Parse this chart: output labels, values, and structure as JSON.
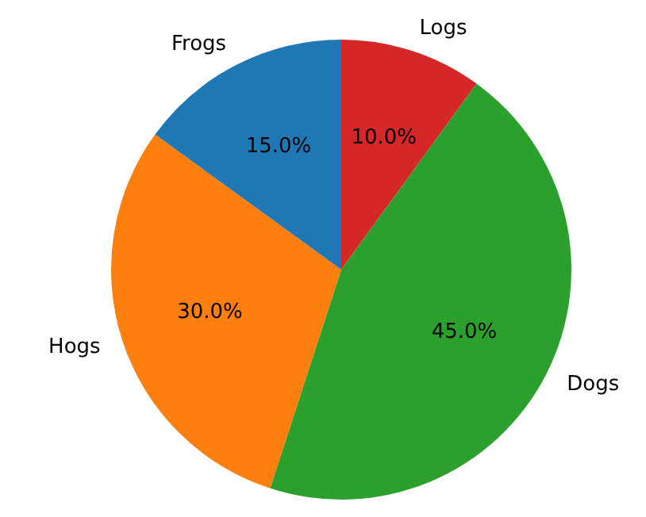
{
  "chart_data": {
    "type": "pie",
    "categories": [
      "Frogs",
      "Hogs",
      "Dogs",
      "Logs"
    ],
    "values": [
      15,
      30,
      45,
      10
    ],
    "value_labels": [
      "15.0%",
      "30.0%",
      "45.0%",
      "10.0%"
    ],
    "colors": [
      "#1f77b4",
      "#ff7f0e",
      "#2ca02c",
      "#d62728"
    ],
    "legend": false
  }
}
